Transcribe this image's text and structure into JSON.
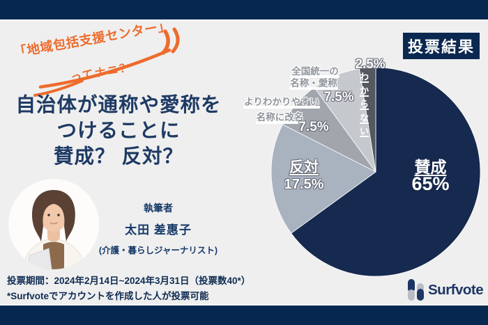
{
  "page": {
    "background": "#efefef",
    "navy_bar": "#062850",
    "orange": "#ed6c2d"
  },
  "header": {
    "catch_line1": "「地域包括支援センター」",
    "catch_line2": "ってナニ？",
    "badge": "投票結果"
  },
  "title": {
    "lines": [
      "自治体が通称や愛称を",
      "つけることに",
      "賛成？ 反対？"
    ]
  },
  "chart_data": {
    "type": "pie",
    "title": "投票結果",
    "start": "top",
    "direction": "clockwise",
    "slices": [
      {
        "label": "賛成",
        "pct": "65%",
        "value": 65,
        "color": "#16294e"
      },
      {
        "label": "反対",
        "pct": "17.5%",
        "value": 17.5,
        "color": "#a9b2bf"
      },
      {
        "label": "よりわかりやすい名称に改名",
        "label_line1": "よりわかりやすい",
        "label_line2": "名称に改名",
        "pct": "7.5%",
        "value": 7.5,
        "color": "#a1a6ad"
      },
      {
        "label": "全国統一の名称・愛称",
        "label_line1": "全国統一の",
        "label_line2": "名称・愛称",
        "pct": "7.5%",
        "value": 7.5,
        "color": "#c5c8cd"
      },
      {
        "label": "わからない",
        "pct": "2.5%",
        "value": 2.5,
        "color": "#54585f"
      }
    ]
  },
  "author": {
    "role": "執筆者",
    "name": "太田 差惠子",
    "description": "(介護・暮らしジャーナリスト)"
  },
  "footer": {
    "period": "投票期間：2024年2月14日~2024年3月31日（投票数40*）",
    "note": "*Surfvoteでアカウントを作成した人が投票可能"
  },
  "logo": {
    "text": "Surfvote"
  }
}
